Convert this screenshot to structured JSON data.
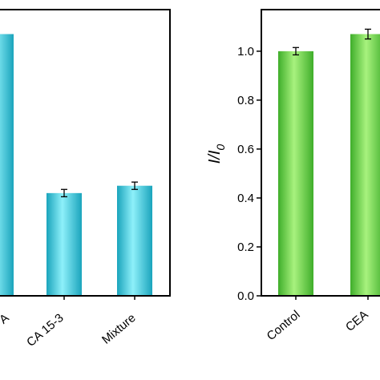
{
  "chart_data": [
    {
      "type": "bar",
      "categories": [
        "A",
        "CA 15-3",
        "Mixture"
      ],
      "category_label_visibility": [
        "partial",
        "full",
        "full"
      ],
      "values": [
        1.07,
        0.42,
        0.45
      ],
      "errors": [
        0.015,
        0.015,
        0.015
      ],
      "bar_color": "#3cc4d8",
      "ylim": [
        0,
        1.17
      ],
      "y_ticks_visible": false
    },
    {
      "type": "bar",
      "categories": [
        "Control",
        "CEA"
      ],
      "values": [
        1.0,
        1.07
      ],
      "errors": [
        0.015,
        0.02
      ],
      "bar_color": "#6dd64a",
      "ylabel": "I/I",
      "ylabel_subscript": "0",
      "ylim": [
        0,
        1.17
      ],
      "y_ticks": [
        "0.0",
        "0.2",
        "0.4",
        "0.6",
        "0.8",
        "1.0"
      ]
    }
  ]
}
